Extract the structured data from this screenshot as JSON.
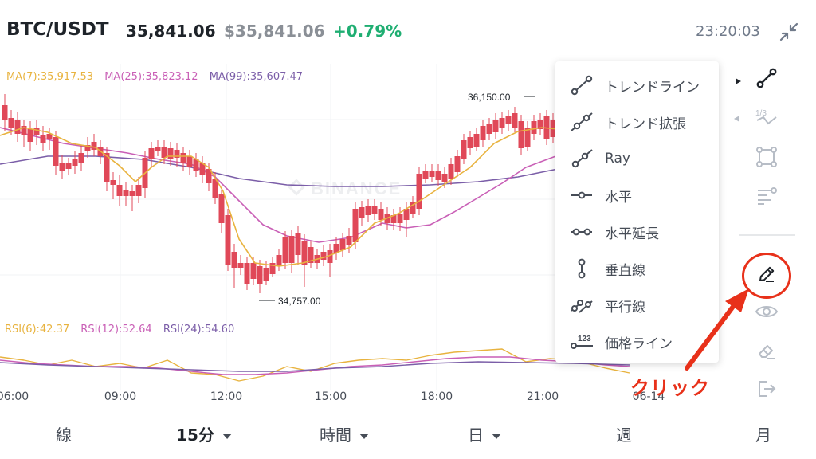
{
  "header": {
    "pair": "BTC/USDT",
    "price": "35,841.06",
    "price_usd": "$35,841.06",
    "change": "+0.79%",
    "time": "23:20:03"
  },
  "ma_legend": {
    "ma7": "MA(7):35,917.53",
    "ma25": "MA(25):35,823.12",
    "ma99": "MA(99):35,607.47"
  },
  "rsi_legend": {
    "rsi6": "RSI(6):42.37",
    "rsi12": "RSI(12):52.64",
    "rsi24": "RSI(24):54.60"
  },
  "price_labels": {
    "high": "36,150.00",
    "low": "34,757.00"
  },
  "watermark": "BINANCE",
  "time_axis": [
    "06:00",
    "09:00",
    "12:00",
    "15:00",
    "18:00",
    "21:00",
    "06-14"
  ],
  "timeframes": [
    {
      "label": "線"
    },
    {
      "label": "15分"
    },
    {
      "label": "時間"
    },
    {
      "label": "日"
    },
    {
      "label": "週"
    },
    {
      "label": "月"
    }
  ],
  "drawing_tools": [
    {
      "label": "トレンドライン",
      "icon": "trend-line-icon"
    },
    {
      "label": "トレンド拡張",
      "icon": "trend-extension-icon"
    },
    {
      "label": "Ray",
      "icon": "ray-icon"
    },
    {
      "label": "水平",
      "icon": "horizontal-line-icon"
    },
    {
      "label": "水平延長",
      "icon": "horizontal-extension-icon"
    },
    {
      "label": "垂直線",
      "icon": "vertical-line-icon"
    },
    {
      "label": "平行線",
      "icon": "parallel-lines-icon"
    },
    {
      "label": "価格ライン",
      "icon": "price-line-icon"
    }
  ],
  "price_line_icon_text": "123",
  "fib_icon_text": "1/3",
  "annotation": "クリック",
  "colors": {
    "up": "#1fae72",
    "down": "#e04858",
    "ma7": "#e8b33f",
    "ma25": "#c95fb6",
    "ma99": "#7b5ea8",
    "accent_red": "#e8311a",
    "positive_change": "#1fae72"
  }
}
